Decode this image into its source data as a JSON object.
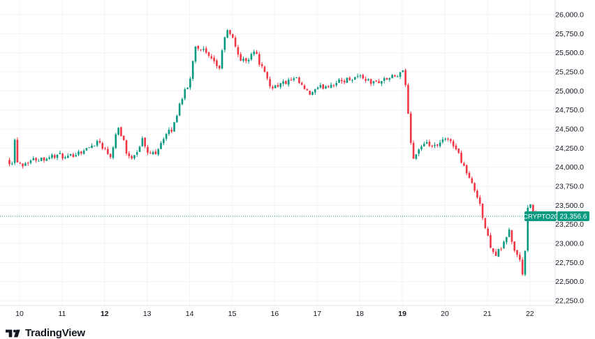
{
  "brand": {
    "name": "TradingView"
  },
  "colors": {
    "up": "#089981",
    "down": "#f23645",
    "label_bg": "#089981",
    "label_text": "#ffffff"
  },
  "chart_data": {
    "type": "candlestick",
    "symbol": "CRYPTO20",
    "last_price": 23356.6,
    "last_price_label": "23,356.6",
    "ylim": [
      22180,
      26120
    ],
    "y_ticks": [
      {
        "value": 26000,
        "label": "26,000.0"
      },
      {
        "value": 25750,
        "label": "25,750.0"
      },
      {
        "value": 25500,
        "label": "25,500.0"
      },
      {
        "value": 25250,
        "label": "25,250.0"
      },
      {
        "value": 25000,
        "label": "25,000.0"
      },
      {
        "value": 24750,
        "label": "24,750.0"
      },
      {
        "value": 24500,
        "label": "24,500.0"
      },
      {
        "value": 24250,
        "label": "24,250.0"
      },
      {
        "value": 24000,
        "label": "24,000.0"
      },
      {
        "value": 23750,
        "label": "23,750.0"
      },
      {
        "value": 23500,
        "label": "23,500.0"
      },
      {
        "value": 23250,
        "label": "23,250.0"
      },
      {
        "value": 23000,
        "label": "23,000.0"
      },
      {
        "value": 22750,
        "label": "22,750.0"
      },
      {
        "value": 22500,
        "label": "22,500.0"
      },
      {
        "value": 22250,
        "label": "22,250.0"
      }
    ],
    "x_ticks": [
      {
        "day": 10,
        "label": "10",
        "bold": false
      },
      {
        "day": 11,
        "label": "11",
        "bold": false
      },
      {
        "day": 12,
        "label": "12",
        "bold": true
      },
      {
        "day": 13,
        "label": "13",
        "bold": false
      },
      {
        "day": 14,
        "label": "14",
        "bold": false
      },
      {
        "day": 15,
        "label": "15",
        "bold": false
      },
      {
        "day": 16,
        "label": "16",
        "bold": false
      },
      {
        "day": 17,
        "label": "17",
        "bold": false
      },
      {
        "day": 18,
        "label": "18",
        "bold": false
      },
      {
        "day": 19,
        "label": "19",
        "bold": true
      },
      {
        "day": 20,
        "label": "20",
        "bold": false
      },
      {
        "day": 21,
        "label": "21",
        "bold": false
      },
      {
        "day": 22,
        "label": "22",
        "bold": false
      }
    ],
    "x_range": [
      9.7,
      22.55
    ],
    "path_points": [
      [
        9.7,
        24100
      ],
      [
        9.82,
        24050
      ],
      [
        9.88,
        24400
      ],
      [
        9.93,
        24100
      ],
      [
        10.05,
        24030
      ],
      [
        10.2,
        24080
      ],
      [
        10.4,
        24110
      ],
      [
        10.6,
        24120
      ],
      [
        10.8,
        24150
      ],
      [
        11.0,
        24150
      ],
      [
        11.1,
        24100
      ],
      [
        11.3,
        24180
      ],
      [
        11.6,
        24240
      ],
      [
        11.85,
        24350
      ],
      [
        12.05,
        24200
      ],
      [
        12.15,
        24150
      ],
      [
        12.3,
        24550
      ],
      [
        12.45,
        24350
      ],
      [
        12.55,
        24100
      ],
      [
        12.75,
        24200
      ],
      [
        12.9,
        24380
      ],
      [
        13.0,
        24170
      ],
      [
        13.2,
        24200
      ],
      [
        13.4,
        24400
      ],
      [
        13.6,
        24500
      ],
      [
        13.8,
        24900
      ],
      [
        14.0,
        25100
      ],
      [
        14.12,
        25600
      ],
      [
        14.3,
        25550
      ],
      [
        14.5,
        25400
      ],
      [
        14.7,
        25300
      ],
      [
        14.85,
        25800
      ],
      [
        15.0,
        25700
      ],
      [
        15.2,
        25400
      ],
      [
        15.35,
        25400
      ],
      [
        15.5,
        25550
      ],
      [
        15.7,
        25300
      ],
      [
        15.9,
        25050
      ],
      [
        16.2,
        25100
      ],
      [
        16.5,
        25150
      ],
      [
        16.8,
        24950
      ],
      [
        17.1,
        25050
      ],
      [
        17.4,
        25100
      ],
      [
        17.7,
        25150
      ],
      [
        18.0,
        25200
      ],
      [
        18.3,
        25100
      ],
      [
        18.6,
        25150
      ],
      [
        18.9,
        25200
      ],
      [
        19.05,
        25250
      ],
      [
        19.15,
        24600
      ],
      [
        19.25,
        24100
      ],
      [
        19.4,
        24250
      ],
      [
        19.6,
        24300
      ],
      [
        19.8,
        24250
      ],
      [
        19.95,
        24350
      ],
      [
        20.15,
        24350
      ],
      [
        20.3,
        24200
      ],
      [
        20.5,
        23950
      ],
      [
        20.65,
        23750
      ],
      [
        20.8,
        23600
      ],
      [
        20.9,
        23300
      ],
      [
        21.05,
        23000
      ],
      [
        21.2,
        22850
      ],
      [
        21.4,
        23000
      ],
      [
        21.5,
        23200
      ],
      [
        21.6,
        22950
      ],
      [
        21.75,
        22800
      ],
      [
        21.85,
        22550
      ],
      [
        21.95,
        23450
      ],
      [
        22.05,
        23500
      ],
      [
        22.15,
        23300
      ],
      [
        22.25,
        23380
      ]
    ]
  }
}
